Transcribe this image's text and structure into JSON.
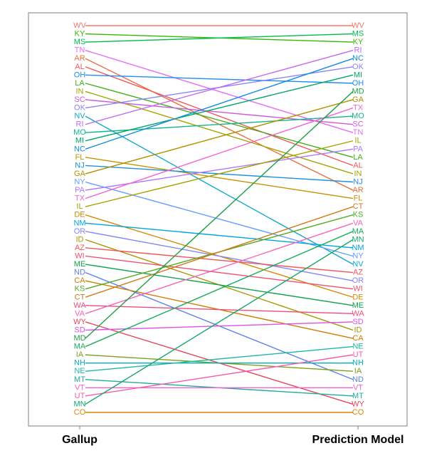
{
  "chart_data": {
    "type": "slope",
    "x": [
      "Gallup",
      "Prediction Model"
    ],
    "left_order": [
      "WV",
      "KY",
      "MS",
      "TN",
      "AR",
      "AL",
      "OH",
      "LA",
      "IN",
      "SC",
      "OK",
      "NV",
      "RI",
      "MO",
      "MI",
      "NC",
      "FL",
      "NJ",
      "GA",
      "NY",
      "PA",
      "TX",
      "IL",
      "DE",
      "NM",
      "OR",
      "ID",
      "AZ",
      "WI",
      "ME",
      "ND",
      "CA",
      "KS",
      "CT",
      "WA",
      "VA",
      "WY",
      "SD",
      "MD",
      "MA",
      "IA",
      "NH",
      "NE",
      "MT",
      "VT",
      "UT",
      "MN",
      "CO"
    ],
    "right_order": [
      "WV",
      "MS",
      "KY",
      "RI",
      "NC",
      "OK",
      "MI",
      "OH",
      "MD",
      "GA",
      "TX",
      "MO",
      "SC",
      "TN",
      "IL",
      "PA",
      "LA",
      "AL",
      "IN",
      "NJ",
      "AR",
      "FL",
      "CT",
      "KS",
      "VA",
      "MA",
      "MN",
      "NM",
      "NY",
      "NV",
      "AZ",
      "OR",
      "WI",
      "DE",
      "ME",
      "WA",
      "SD",
      "ID",
      "CA",
      "NE",
      "UT",
      "NH",
      "IA",
      "ND",
      "VT",
      "MT",
      "WY",
      "CO"
    ],
    "colors": {
      "WV": "#F8766D",
      "KY": "#39B600",
      "MS": "#00BB4E",
      "TN": "#E76BF3",
      "AR": "#E86E3B",
      "AL": "#F2575D",
      "OH": "#1E8EF0",
      "LA": "#40AE14",
      "IN": "#A3A500",
      "SC": "#CC5BDD",
      "OK": "#8A84F9",
      "NV": "#11A9CF",
      "RI": "#C668F2",
      "MO": "#12B48E",
      "MI": "#00A766",
      "NC": "#138BE3",
      "FL": "#C59200",
      "NJ": "#1E8FD9",
      "GA": "#B39200",
      "NY": "#619CFF",
      "PA": "#B275FF",
      "TX": "#F365CF",
      "IL": "#A8A100",
      "DE": "#D38A00",
      "NM": "#00A4E0",
      "OR": "#8585FB",
      "ID": "#A79700",
      "AZ": "#F1545C",
      "WI": "#EF5070",
      "ME": "#13A24C",
      "ND": "#5D81EB",
      "CA": "#D07A00",
      "KS": "#55AA26",
      "CT": "#D07A1A",
      "WA": "#ED4E7A",
      "VA": "#F863B8",
      "WY": "#E7465B",
      "SD": "#DC52E6",
      "MD": "#1E9F49",
      "MA": "#1AAE5B",
      "IA": "#7D9F1A",
      "NH": "#00B0C3",
      "NE": "#1EB7A6",
      "MT": "#1EAE98",
      "VT": "#FB61D7",
      "UT": "#F75AA9",
      "MN": "#13A86B",
      "CO": "#DE8400"
    }
  }
}
